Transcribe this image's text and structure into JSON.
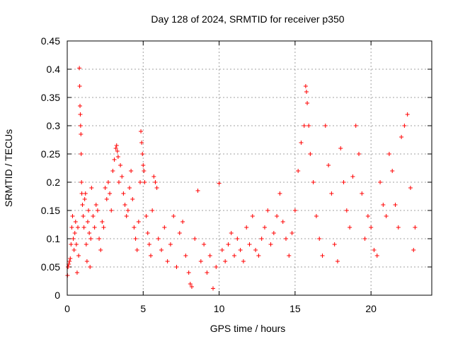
{
  "chart_data": {
    "type": "scatter",
    "title": "Day 128 of 2024, SRMTID for receiver p350",
    "xlabel": "GPS time / hours",
    "ylabel": "SRMTID / TECUs",
    "xlim": [
      0,
      24
    ],
    "ylim": [
      0,
      0.45
    ],
    "xticks": [
      0,
      5,
      10,
      15,
      20
    ],
    "xtick_labels": [
      "0",
      "5",
      "10",
      "15",
      "20"
    ],
    "yticks": [
      0,
      0.05,
      0.1,
      0.15,
      0.2,
      0.25,
      0.3,
      0.35,
      0.4,
      0.45
    ],
    "ytick_labels": [
      "0",
      "0.05",
      "0.1",
      "0.15",
      "0.2",
      "0.25",
      "0.3",
      "0.35",
      "0.4",
      "0.45"
    ],
    "grid": true,
    "marker": "+",
    "color": "#ff0000",
    "series": [
      {
        "name": "SRMTID",
        "points": [
          [
            0.02,
            0.035
          ],
          [
            0.05,
            0.05
          ],
          [
            0.1,
            0.055
          ],
          [
            0.15,
            0.06
          ],
          [
            0.2,
            0.065
          ],
          [
            0.25,
            0.09
          ],
          [
            0.3,
            0.12
          ],
          [
            0.35,
            0.14
          ],
          [
            0.4,
            0.1
          ],
          [
            0.45,
            0.08
          ],
          [
            0.5,
            0.11
          ],
          [
            0.55,
            0.13
          ],
          [
            0.6,
            0.09
          ],
          [
            0.65,
            0.04
          ],
          [
            0.7,
            0.12
          ],
          [
            0.75,
            0.07
          ],
          [
            0.8,
            0.402
          ],
          [
            0.82,
            0.37
          ],
          [
            0.84,
            0.335
          ],
          [
            0.86,
            0.32
          ],
          [
            0.88,
            0.3
          ],
          [
            0.9,
            0.285
          ],
          [
            0.92,
            0.25
          ],
          [
            0.94,
            0.2
          ],
          [
            0.96,
            0.18
          ],
          [
            1.0,
            0.16
          ],
          [
            1.05,
            0.14
          ],
          [
            1.1,
            0.12
          ],
          [
            1.15,
            0.17
          ],
          [
            1.2,
            0.18
          ],
          [
            1.25,
            0.09
          ],
          [
            1.3,
            0.06
          ],
          [
            1.35,
            0.13
          ],
          [
            1.4,
            0.15
          ],
          [
            1.45,
            0.11
          ],
          [
            1.5,
            0.05
          ],
          [
            1.55,
            0.1
          ],
          [
            1.6,
            0.19
          ],
          [
            1.7,
            0.14
          ],
          [
            1.8,
            0.12
          ],
          [
            1.9,
            0.16
          ],
          [
            2.0,
            0.15
          ],
          [
            2.1,
            0.1
          ],
          [
            2.2,
            0.08
          ],
          [
            2.3,
            0.13
          ],
          [
            2.4,
            0.12
          ],
          [
            2.5,
            0.19
          ],
          [
            2.6,
            0.17
          ],
          [
            2.7,
            0.2
          ],
          [
            2.8,
            0.18
          ],
          [
            2.9,
            0.15
          ],
          [
            3.0,
            0.22
          ],
          [
            3.1,
            0.24
          ],
          [
            3.2,
            0.26
          ],
          [
            3.25,
            0.265
          ],
          [
            3.3,
            0.255
          ],
          [
            3.35,
            0.245
          ],
          [
            3.4,
            0.2
          ],
          [
            3.5,
            0.23
          ],
          [
            3.6,
            0.21
          ],
          [
            3.7,
            0.18
          ],
          [
            3.8,
            0.16
          ],
          [
            3.9,
            0.14
          ],
          [
            4.0,
            0.15
          ],
          [
            4.1,
            0.19
          ],
          [
            4.2,
            0.22
          ],
          [
            4.3,
            0.17
          ],
          [
            4.4,
            0.12
          ],
          [
            4.5,
            0.1
          ],
          [
            4.6,
            0.08
          ],
          [
            4.7,
            0.13
          ],
          [
            4.8,
            0.2
          ],
          [
            4.85,
            0.29
          ],
          [
            4.9,
            0.27
          ],
          [
            4.95,
            0.25
          ],
          [
            5.0,
            0.23
          ],
          [
            5.05,
            0.22
          ],
          [
            5.1,
            0.2
          ],
          [
            5.2,
            0.14
          ],
          [
            5.3,
            0.11
          ],
          [
            5.4,
            0.09
          ],
          [
            5.5,
            0.07
          ],
          [
            5.6,
            0.15
          ],
          [
            5.7,
            0.21
          ],
          [
            5.8,
            0.2
          ],
          [
            5.9,
            0.19
          ],
          [
            6.0,
            0.1
          ],
          [
            6.2,
            0.08
          ],
          [
            6.4,
            0.12
          ],
          [
            6.6,
            0.06
          ],
          [
            6.8,
            0.09
          ],
          [
            7.0,
            0.14
          ],
          [
            7.2,
            0.05
          ],
          [
            7.4,
            0.11
          ],
          [
            7.6,
            0.13
          ],
          [
            7.8,
            0.07
          ],
          [
            8.0,
            0.04
          ],
          [
            8.1,
            0.02
          ],
          [
            8.2,
            0.015
          ],
          [
            8.4,
            0.1
          ],
          [
            8.6,
            0.185
          ],
          [
            8.8,
            0.06
          ],
          [
            9.0,
            0.09
          ],
          [
            9.2,
            0.04
          ],
          [
            9.4,
            0.07
          ],
          [
            9.6,
            0.012
          ],
          [
            9.8,
            0.05
          ],
          [
            10.0,
            0.198
          ],
          [
            10.2,
            0.08
          ],
          [
            10.4,
            0.06
          ],
          [
            10.6,
            0.09
          ],
          [
            10.8,
            0.11
          ],
          [
            11.0,
            0.07
          ],
          [
            11.2,
            0.1
          ],
          [
            11.4,
            0.08
          ],
          [
            11.6,
            0.06
          ],
          [
            11.8,
            0.12
          ],
          [
            12.0,
            0.09
          ],
          [
            12.2,
            0.14
          ],
          [
            12.4,
            0.08
          ],
          [
            12.6,
            0.07
          ],
          [
            12.8,
            0.1
          ],
          [
            13.0,
            0.12
          ],
          [
            13.2,
            0.15
          ],
          [
            13.4,
            0.09
          ],
          [
            13.6,
            0.11
          ],
          [
            13.8,
            0.14
          ],
          [
            14.0,
            0.18
          ],
          [
            14.2,
            0.13
          ],
          [
            14.4,
            0.1
          ],
          [
            14.6,
            0.07
          ],
          [
            14.8,
            0.11
          ],
          [
            15.0,
            0.15
          ],
          [
            15.2,
            0.22
          ],
          [
            15.4,
            0.27
          ],
          [
            15.6,
            0.3
          ],
          [
            15.7,
            0.37
          ],
          [
            15.75,
            0.36
          ],
          [
            15.8,
            0.34
          ],
          [
            15.9,
            0.3
          ],
          [
            16.0,
            0.25
          ],
          [
            16.2,
            0.2
          ],
          [
            16.4,
            0.14
          ],
          [
            16.6,
            0.1
          ],
          [
            16.8,
            0.07
          ],
          [
            17.0,
            0.3
          ],
          [
            17.2,
            0.23
          ],
          [
            17.4,
            0.18
          ],
          [
            17.6,
            0.09
          ],
          [
            17.8,
            0.06
          ],
          [
            18.0,
            0.26
          ],
          [
            18.2,
            0.2
          ],
          [
            18.4,
            0.15
          ],
          [
            18.6,
            0.12
          ],
          [
            18.8,
            0.21
          ],
          [
            19.0,
            0.3
          ],
          [
            19.2,
            0.25
          ],
          [
            19.4,
            0.18
          ],
          [
            19.6,
            0.1
          ],
          [
            19.8,
            0.14
          ],
          [
            20.0,
            0.12
          ],
          [
            20.2,
            0.08
          ],
          [
            20.4,
            0.07
          ],
          [
            20.6,
            0.2
          ],
          [
            20.8,
            0.16
          ],
          [
            21.0,
            0.14
          ],
          [
            21.2,
            0.25
          ],
          [
            21.4,
            0.22
          ],
          [
            21.6,
            0.16
          ],
          [
            21.8,
            0.12
          ],
          [
            22.0,
            0.28
          ],
          [
            22.2,
            0.3
          ],
          [
            22.4,
            0.32
          ],
          [
            22.6,
            0.19
          ],
          [
            22.8,
            0.08
          ],
          [
            22.9,
            0.12
          ]
        ]
      }
    ]
  }
}
